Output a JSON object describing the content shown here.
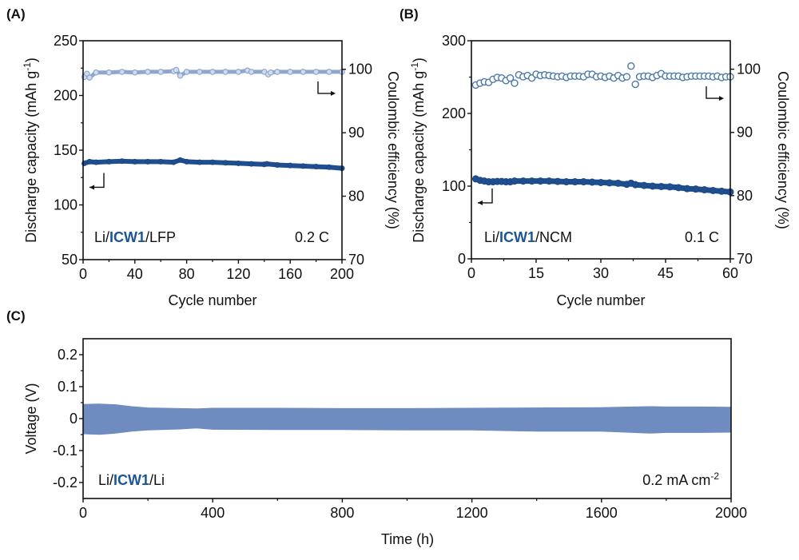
{
  "colors": {
    "capacity": "#1f4f8f",
    "capacity_edge": "#1a4784",
    "ce_light": "#8fa6cf",
    "ce_b": "#4c78a8",
    "voltage": "#6f8cc0",
    "highlight": "#1d5594",
    "axis": "#111111"
  },
  "chart_data": [
    {
      "panel": "(A)",
      "type": "scatter",
      "title": "",
      "cell_label": {
        "prefix": "Li/",
        "highlight": "ICW1",
        "suffix": "/LFP"
      },
      "rate_label": "0.2 C",
      "xlabel": "Cycle number",
      "ylabel": "Discharge capacity (mAh g⁻¹)",
      "ylabel_parts": {
        "main": "Discharge capacity (mAh g",
        "sup": "-1",
        "end": ")"
      },
      "y2label": "Coulombic efficiency (%)",
      "xlim": [
        0,
        200
      ],
      "ylim": [
        50,
        250
      ],
      "y2lim": [
        70,
        104.5
      ],
      "xticks": [
        0,
        40,
        80,
        120,
        160,
        200
      ],
      "yticks": [
        50,
        100,
        150,
        200,
        250
      ],
      "y2ticks": [
        70,
        80,
        90,
        100
      ],
      "series": [
        {
          "name": "Discharge capacity",
          "axis": "left",
          "marker": "filled-circle",
          "x": [
            1,
            5,
            10,
            20,
            30,
            40,
            50,
            60,
            70,
            75,
            80,
            90,
            100,
            110,
            120,
            130,
            140,
            142,
            150,
            160,
            170,
            180,
            190,
            200
          ],
          "y": [
            138,
            139.5,
            139,
            139.5,
            140,
            139.5,
            139.5,
            139.5,
            139,
            141,
            139.5,
            139,
            139,
            138.5,
            138,
            137.5,
            137,
            137.5,
            136.5,
            136,
            135.5,
            135,
            134.5,
            133.5
          ]
        },
        {
          "name": "Coulombic efficiency",
          "axis": "right",
          "marker": "open-circle",
          "x": [
            1,
            3,
            5,
            10,
            20,
            30,
            40,
            50,
            60,
            70,
            72,
            75,
            80,
            90,
            100,
            110,
            120,
            127,
            130,
            140,
            143,
            145,
            150,
            160,
            170,
            180,
            190,
            200
          ],
          "y": [
            98.8,
            99.3,
            98.7,
            99.5,
            99.5,
            99.6,
            99.5,
            99.6,
            99.6,
            99.7,
            99.9,
            99.0,
            99.6,
            99.6,
            99.6,
            99.6,
            99.6,
            99.8,
            99.6,
            99.6,
            99.2,
            99.5,
            99.6,
            99.6,
            99.6,
            99.6,
            99.6,
            99.6
          ]
        }
      ],
      "arrows": [
        "left",
        "right"
      ]
    },
    {
      "panel": "(B)",
      "type": "scatter",
      "title": "",
      "cell_label": {
        "prefix": "Li/",
        "highlight": "ICW1",
        "suffix": "/NCM"
      },
      "rate_label": "0.1 C",
      "xlabel": "Cycle number",
      "ylabel": "Discharge capacity (mAh g⁻¹)",
      "ylabel_parts": {
        "main": "Discharge capacity (mAh g",
        "sup": "-1",
        "end": ")"
      },
      "y2label": "Coulombic efficiency (%)",
      "xlim": [
        0,
        60
      ],
      "ylim": [
        0,
        300
      ],
      "y2lim": [
        70,
        104.5
      ],
      "xticks": [
        0,
        15,
        30,
        45,
        60
      ],
      "yticks": [
        0,
        100,
        200,
        300
      ],
      "y2ticks": [
        70,
        80,
        90,
        100
      ],
      "series": [
        {
          "name": "Discharge capacity",
          "axis": "left",
          "marker": "filled-circle",
          "x": [
            1,
            2,
            3,
            4,
            5,
            6,
            7,
            8,
            9,
            10,
            12,
            14,
            16,
            18,
            20,
            22,
            24,
            26,
            28,
            30,
            32,
            34,
            36,
            37,
            38,
            40,
            42,
            44,
            46,
            48,
            50,
            52,
            54,
            56,
            58,
            60
          ],
          "y": [
            110,
            108,
            107,
            106,
            106,
            106.5,
            106.5,
            106,
            106,
            107,
            107,
            107,
            107,
            107,
            106.5,
            106,
            106,
            106,
            105.5,
            105,
            104.5,
            104,
            102.5,
            104,
            102,
            101,
            100,
            99.5,
            99,
            98,
            96.5,
            96,
            95,
            94,
            93,
            92
          ]
        },
        {
          "name": "Coulombic efficiency",
          "axis": "right",
          "marker": "open-circle",
          "x": [
            1,
            2,
            3,
            4,
            5,
            6,
            7,
            8,
            9,
            10,
            11,
            12,
            13,
            14,
            15,
            16,
            17,
            18,
            19,
            20,
            21,
            22,
            23,
            24,
            25,
            26,
            27,
            28,
            29,
            30,
            31,
            32,
            33,
            34,
            35,
            36,
            37,
            38,
            39,
            40,
            41,
            42,
            43,
            44,
            45,
            46,
            47,
            48,
            49,
            50,
            51,
            52,
            53,
            54,
            55,
            56,
            57,
            58,
            59,
            60
          ],
          "y": [
            97.5,
            97.8,
            98.0,
            97.9,
            98.4,
            98.7,
            98.6,
            98.2,
            98.6,
            97.8,
            99.1,
            98.8,
            99.0,
            98.6,
            99.2,
            99.0,
            99.1,
            99.0,
            98.9,
            98.8,
            98.9,
            98.7,
            98.9,
            98.9,
            98.9,
            98.8,
            99.2,
            99.2,
            98.8,
            98.9,
            98.7,
            98.9,
            98.6,
            99.0,
            98.6,
            98.8,
            100.5,
            97.6,
            98.8,
            98.9,
            98.9,
            98.7,
            99.0,
            99.3,
            98.9,
            98.9,
            98.9,
            98.9,
            98.7,
            98.8,
            98.9,
            98.9,
            98.9,
            98.9,
            98.9,
            98.8,
            98.9,
            98.7,
            98.8,
            98.8
          ]
        }
      ],
      "arrows": [
        "left",
        "right"
      ]
    },
    {
      "panel": "(C)",
      "type": "area",
      "title": "",
      "cell_label": {
        "prefix": "Li/",
        "highlight": "ICW1",
        "suffix": "/Li"
      },
      "rate_label": {
        "main": "0.2 mA cm",
        "sup": "-2"
      },
      "xlabel": "Time (h)",
      "ylabel": "Voltage (V)",
      "xlim": [
        0,
        2000
      ],
      "ylim": [
        -0.25,
        0.25
      ],
      "xticks": [
        0,
        400,
        800,
        1200,
        1600,
        2000
      ],
      "yticks": [
        -0.2,
        -0.1,
        0,
        0.1,
        0.2
      ],
      "ytick_labels": [
        "-0.2",
        "-0.1",
        "0",
        "0.1",
        "0.2"
      ],
      "series": [
        {
          "name": "Voltage envelope upper",
          "x": [
            0,
            50,
            100,
            150,
            200,
            300,
            350,
            400,
            600,
            800,
            1000,
            1200,
            1400,
            1600,
            1750,
            1800,
            1900,
            2000
          ],
          "y": [
            0.045,
            0.046,
            0.044,
            0.038,
            0.034,
            0.032,
            0.031,
            0.033,
            0.033,
            0.032,
            0.032,
            0.033,
            0.034,
            0.035,
            0.038,
            0.037,
            0.037,
            0.036
          ]
        },
        {
          "name": "Voltage envelope lower",
          "x": [
            0,
            50,
            100,
            150,
            200,
            300,
            350,
            400,
            600,
            800,
            1000,
            1200,
            1400,
            1600,
            1750,
            1800,
            1900,
            2000
          ],
          "y": [
            -0.048,
            -0.05,
            -0.046,
            -0.04,
            -0.036,
            -0.033,
            -0.03,
            -0.034,
            -0.035,
            -0.035,
            -0.036,
            -0.036,
            -0.04,
            -0.04,
            -0.046,
            -0.044,
            -0.044,
            -0.043
          ]
        }
      ]
    }
  ]
}
